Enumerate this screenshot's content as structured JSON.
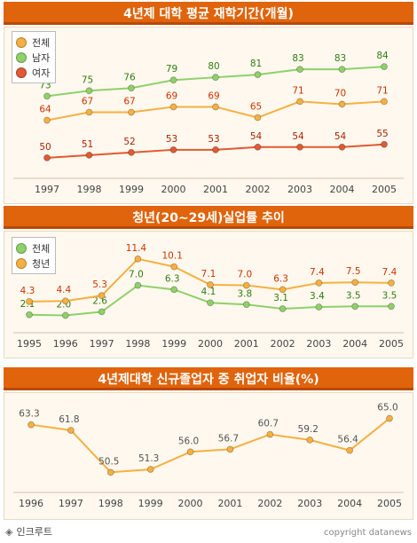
{
  "chart_data": [
    {
      "type": "line",
      "title": "4년제 대학 평균 재학기간(개월)",
      "categories": [
        "1997",
        "1998",
        "1999",
        "2000",
        "2001",
        "2002",
        "2003",
        "2004",
        "2005"
      ],
      "series": [
        {
          "name": "전체",
          "color": "#f5b042",
          "values": [
            64,
            67,
            67,
            69,
            69,
            65,
            71,
            70,
            71
          ]
        },
        {
          "name": "남자",
          "color": "#8fd06a",
          "values": [
            73,
            75,
            76,
            79,
            80,
            81,
            83,
            83,
            84
          ]
        },
        {
          "name": "여자",
          "color": "#e05a32",
          "values": [
            50,
            51,
            52,
            53,
            53,
            54,
            54,
            54,
            55
          ]
        }
      ],
      "ylim": [
        45,
        88
      ],
      "legend": "top-left",
      "label_colors": [
        "#cc3300",
        "#2f7d12",
        "#aa2200"
      ]
    },
    {
      "type": "line",
      "title": "청년(20~29세)실업률 추이",
      "categories": [
        "1995",
        "1996",
        "1997",
        "1998",
        "1999",
        "2000",
        "2001",
        "2002",
        "2003",
        "2004",
        "2005"
      ],
      "series": [
        {
          "name": "전체",
          "color": "#8fd06a",
          "values": [
            2.1,
            2.0,
            2.6,
            7.0,
            6.3,
            4.1,
            3.8,
            3.1,
            3.4,
            3.5,
            3.5
          ]
        },
        {
          "name": "청년",
          "color": "#f5b042",
          "values": [
            4.3,
            4.4,
            5.3,
            11.4,
            10.1,
            7.1,
            7.0,
            6.3,
            7.4,
            7.5,
            7.4
          ]
        }
      ],
      "ylim": [
        0,
        13
      ],
      "legend": "top-left",
      "label_colors": [
        "#2f7d12",
        "#cc3300"
      ]
    },
    {
      "type": "line",
      "title": "4년제대학 신규졸업자 중 취업자 비율(%)",
      "categories": [
        "1996",
        "1997",
        "1998",
        "1999",
        "2000",
        "2001",
        "2002",
        "2003",
        "2004",
        "2005"
      ],
      "series": [
        {
          "name": "",
          "color": "#f5b042",
          "values": [
            63.3,
            61.8,
            50.5,
            51.3,
            56.0,
            56.7,
            60.7,
            59.2,
            56.4,
            65.0
          ]
        }
      ],
      "ylim": [
        47,
        68
      ],
      "legend": "",
      "label_colors": [
        "#555555"
      ]
    }
  ],
  "footer": {
    "brand_mark": "◈",
    "brand": "인크루트",
    "copyright": "copyright datanews"
  }
}
